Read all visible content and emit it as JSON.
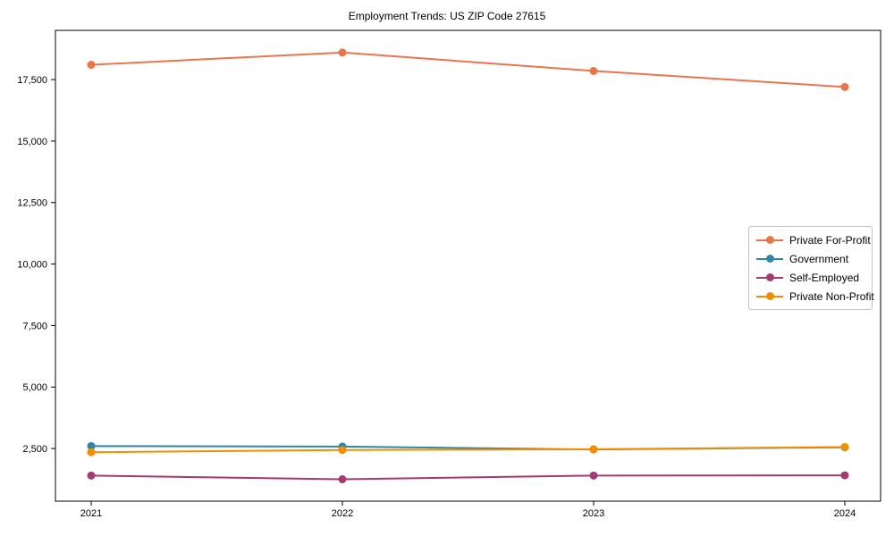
{
  "chart_data": {
    "type": "line",
    "title": "Employment Trends: US ZIP Code 27615",
    "categories": [
      "2021",
      "2022",
      "2023",
      "2024"
    ],
    "series": [
      {
        "name": "Private For-Profit",
        "color": "#E8764C",
        "values": [
          18100,
          18600,
          17850,
          17200
        ]
      },
      {
        "name": "Government",
        "color": "#2E86AB",
        "values": [
          2600,
          2580,
          2460,
          2550
        ]
      },
      {
        "name": "Self-Employed",
        "color": "#A23B72",
        "values": [
          1400,
          1250,
          1400,
          1410
        ]
      },
      {
        "name": "Private Non-Profit",
        "color": "#F18F01",
        "values": [
          2350,
          2440,
          2470,
          2560
        ]
      }
    ],
    "xlabel": "",
    "ylabel": "",
    "xlim": [
      -0.1425,
      3.1425
    ],
    "ylim": [
      360,
      19500
    ],
    "yticks": [
      2500,
      5000,
      7500,
      10000,
      12500,
      15000,
      17500
    ],
    "ytick_labels": [
      "2,500",
      "5,000",
      "7,500",
      "10,000",
      "12,500",
      "15,000",
      "17,500"
    ],
    "grid": false,
    "legend_position": "center right",
    "marker": "circle",
    "spine_color": "#000000"
  }
}
